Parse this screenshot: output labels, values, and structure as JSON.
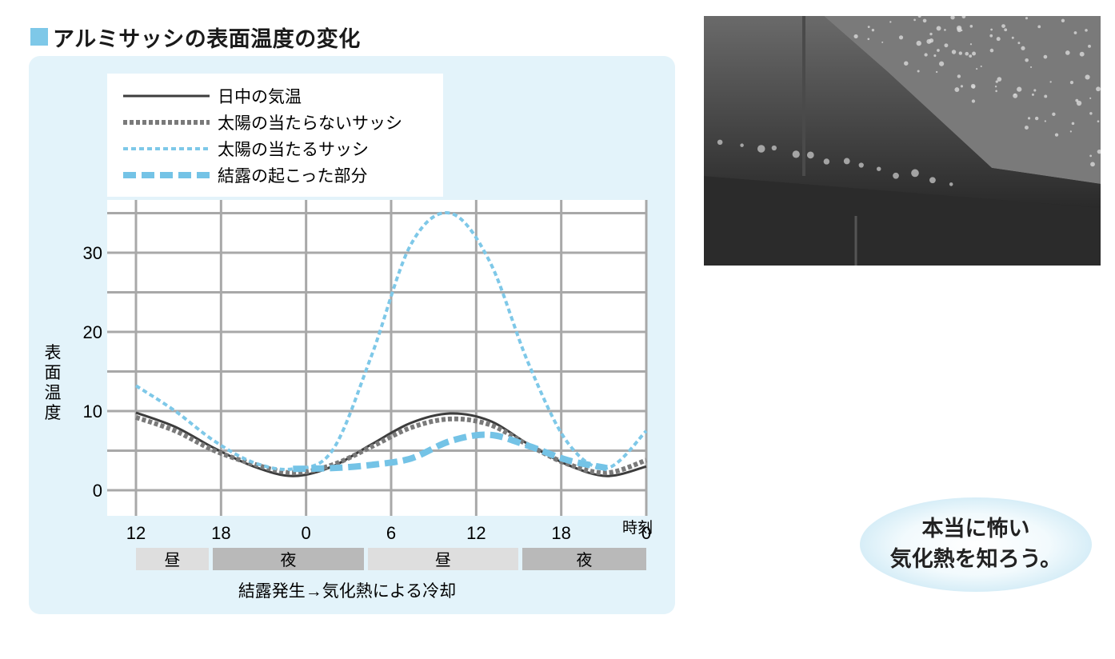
{
  "heading": {
    "title": "アルミサッシの表面温度の変化"
  },
  "colors": {
    "accent": "#7ec8e8",
    "panel": "#e3f3fa",
    "grid": "#a8a8a8",
    "air": "#3d3d3d",
    "shaded": "#7a7a7a",
    "sunlit": "#7ec8e8",
    "condensation": "#74c3e6"
  },
  "chart_data": {
    "type": "line",
    "ylabel": "表面温度",
    "xlabel": "時刻",
    "ylim": [
      0,
      35
    ],
    "yticks": [
      0,
      10,
      20,
      30
    ],
    "xticks": [
      "12",
      "18",
      "0",
      "6",
      "12",
      "18",
      "0"
    ],
    "grid": true,
    "legend_position": "top-left",
    "period_bands": [
      "昼",
      "夜",
      "昼",
      "夜"
    ],
    "caption": "結露発生→気化熱による冷却",
    "x": [
      12,
      15,
      18,
      21,
      24,
      27,
      30,
      33,
      36,
      39,
      42,
      45,
      48,
      51
    ],
    "series": [
      {
        "name": "日中の気温",
        "style": "solid",
        "values": [
          9.8,
          8.0,
          5.3,
          3.0,
          1.8,
          3.0,
          5.8,
          8.5,
          9.7,
          8.8,
          5.8,
          3.2,
          1.8,
          3.0
        ]
      },
      {
        "name": "太陽の当たらないサッシ",
        "style": "dotted-gray",
        "values": [
          9.2,
          7.5,
          5.0,
          3.3,
          2.2,
          3.2,
          5.5,
          7.9,
          9.0,
          8.3,
          5.7,
          3.3,
          2.2,
          3.8
        ]
      },
      {
        "name": "太陽の当たるサッシ",
        "style": "dotted-blue",
        "values": [
          13.2,
          10.0,
          6.2,
          3.5,
          2.7,
          5.0,
          17.0,
          31.0,
          35.0,
          29.0,
          16.0,
          6.0,
          2.8,
          7.5
        ]
      },
      {
        "name": "結露の起こった部分",
        "style": "dashed-blue",
        "values": [
          null,
          null,
          null,
          null,
          2.7,
          2.8,
          3.2,
          4.0,
          6.2,
          7.0,
          5.6,
          3.8,
          2.8,
          null
        ]
      }
    ]
  },
  "badge": {
    "line1": "本当に怖い",
    "line2": "気化熱を知ろう。"
  }
}
